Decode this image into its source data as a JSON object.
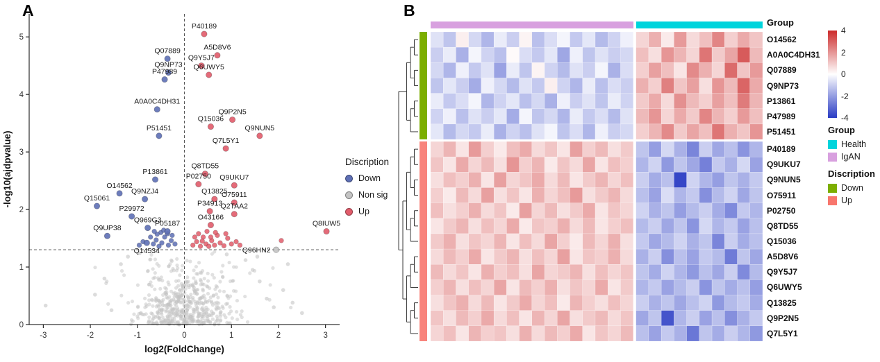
{
  "figure": {
    "panel_a_label": "A",
    "panel_b_label": "B"
  },
  "chart_data": [
    {
      "type": "scatter",
      "name": "volcano-plot",
      "xlabel": "log2(FoldChange)",
      "ylabel": "-log10(ajdpvalue)",
      "xlim": [
        -3.3,
        3.3
      ],
      "ylim": [
        0,
        5.4
      ],
      "xticks": [
        -3,
        -2,
        -1,
        0,
        1,
        2,
        3
      ],
      "yticks": [
        0,
        1,
        2,
        3,
        4,
        5
      ],
      "hline": 1.3,
      "vline": 0,
      "legend_title": "Discription",
      "legend_items": [
        {
          "key": "down",
          "label": "Down"
        },
        {
          "key": "nonsig",
          "label": "Non sig"
        },
        {
          "key": "up",
          "label": "Up"
        }
      ],
      "groups": {
        "down": {
          "label": "Down",
          "color": "#5E6FB5"
        },
        "nonsig": {
          "label": "Non sig",
          "color": "#C4C4C4"
        },
        "up": {
          "label": "Up",
          "color": "#E25C6B"
        }
      },
      "points": [
        {
          "name": "P40189",
          "x": 0.42,
          "y": 5.05,
          "group": "up"
        },
        {
          "name": "A5D8V6",
          "x": 0.7,
          "y": 4.68,
          "group": "up"
        },
        {
          "name": "Q9Y5J7",
          "x": 0.36,
          "y": 4.5,
          "group": "up"
        },
        {
          "name": "Q6UWY5",
          "x": 0.52,
          "y": 4.34,
          "group": "up"
        },
        {
          "name": "Q9P2N5",
          "x": 1.02,
          "y": 3.56,
          "group": "up"
        },
        {
          "name": "Q15036",
          "x": 0.56,
          "y": 3.44,
          "group": "up"
        },
        {
          "name": "Q9NUN5",
          "x": 1.6,
          "y": 3.28,
          "group": "up"
        },
        {
          "name": "Q7L5Y1",
          "x": 0.88,
          "y": 3.06,
          "group": "up"
        },
        {
          "name": "Q8TD55",
          "x": 0.44,
          "y": 2.62,
          "group": "up"
        },
        {
          "name": "P02750",
          "x": 0.3,
          "y": 2.44,
          "group": "up"
        },
        {
          "name": "Q9UKU7",
          "x": 1.06,
          "y": 2.42,
          "group": "up"
        },
        {
          "name": "Q13825",
          "x": 0.64,
          "y": 2.18,
          "group": "up"
        },
        {
          "name": "O75911",
          "x": 1.06,
          "y": 2.12,
          "group": "up"
        },
        {
          "name": "P34913",
          "x": 0.54,
          "y": 1.97,
          "group": "up"
        },
        {
          "name": "Q2TAA2",
          "x": 1.06,
          "y": 1.92,
          "group": "up"
        },
        {
          "name": "O43166",
          "x": 0.56,
          "y": 1.73,
          "group": "up"
        },
        {
          "name": "Q8IUW5",
          "x": 3.02,
          "y": 1.62,
          "group": "up"
        },
        {
          "name": "Q07889",
          "x": -0.36,
          "y": 4.62,
          "group": "down"
        },
        {
          "name": "Q9NP73",
          "x": -0.34,
          "y": 4.38,
          "group": "down"
        },
        {
          "name": "P47989",
          "x": -0.42,
          "y": 4.26,
          "group": "down"
        },
        {
          "name": "A0A0C4DH31",
          "x": -0.58,
          "y": 3.74,
          "group": "down"
        },
        {
          "name": "P51451",
          "x": -0.54,
          "y": 3.28,
          "group": "down"
        },
        {
          "name": "P13861",
          "x": -0.62,
          "y": 2.52,
          "group": "down"
        },
        {
          "name": "O14562",
          "x": -1.38,
          "y": 2.28,
          "group": "down"
        },
        {
          "name": "Q9NZJ4",
          "x": -0.84,
          "y": 2.18,
          "group": "down"
        },
        {
          "name": "Q15061",
          "x": -1.86,
          "y": 2.06,
          "group": "down"
        },
        {
          "name": "P29972",
          "x": -1.12,
          "y": 1.88,
          "group": "down"
        },
        {
          "name": "Q969G3",
          "x": -0.78,
          "y": 1.68,
          "group": "down"
        },
        {
          "name": "P05187",
          "x": -0.36,
          "y": 1.62,
          "group": "down"
        },
        {
          "name": "Q9UP38",
          "x": -1.64,
          "y": 1.54,
          "group": "down"
        },
        {
          "name": "Q14534",
          "x": -0.8,
          "y": 1.42,
          "group": "down",
          "label_pos": "below"
        },
        {
          "name": "Q96HN2",
          "x": 1.95,
          "y": 1.3,
          "group": "nonsig",
          "label_pos": "left"
        }
      ],
      "extra_points": {
        "up": [
          [
            0.18,
            1.38
          ],
          [
            0.26,
            1.44
          ],
          [
            0.34,
            1.36
          ],
          [
            0.4,
            1.52
          ],
          [
            0.46,
            1.4
          ],
          [
            0.52,
            1.36
          ],
          [
            0.58,
            1.46
          ],
          [
            0.64,
            1.38
          ],
          [
            0.7,
            1.55
          ],
          [
            0.76,
            1.42
          ],
          [
            0.84,
            1.37
          ],
          [
            0.92,
            1.5
          ],
          [
            1.0,
            1.4
          ],
          [
            1.1,
            1.44
          ],
          [
            0.3,
            1.58
          ],
          [
            0.48,
            1.62
          ],
          [
            0.66,
            1.6
          ],
          [
            0.88,
            1.58
          ],
          [
            2.06,
            1.46
          ],
          [
            0.22,
            1.52
          ],
          [
            0.38,
            1.45
          ],
          [
            0.56,
            1.52
          ],
          [
            1.18,
            1.38
          ]
        ],
        "down": [
          [
            -0.2,
            1.4
          ],
          [
            -0.28,
            1.46
          ],
          [
            -0.34,
            1.38
          ],
          [
            -0.42,
            1.52
          ],
          [
            -0.48,
            1.42
          ],
          [
            -0.54,
            1.36
          ],
          [
            -0.6,
            1.47
          ],
          [
            -0.66,
            1.4
          ],
          [
            -0.72,
            1.52
          ],
          [
            -0.5,
            1.6
          ],
          [
            -0.36,
            1.58
          ],
          [
            -0.26,
            1.55
          ],
          [
            -0.58,
            1.57
          ],
          [
            -0.44,
            1.64
          ],
          [
            -0.88,
            1.44
          ],
          [
            -0.96,
            1.38
          ],
          [
            -0.64,
            1.62
          ]
        ]
      },
      "nonsig_outliers": [
        [
          -2.95,
          0.33
        ],
        [
          -1.9,
          0.52
        ],
        [
          -1.55,
          0.25
        ],
        [
          1.6,
          0.75
        ],
        [
          1.75,
          0.45
        ],
        [
          1.9,
          0.3
        ],
        [
          2.1,
          0.6
        ],
        [
          2.3,
          0.38
        ],
        [
          1.45,
          0.95
        ],
        [
          -1.35,
          1.05
        ],
        [
          1.3,
          1.12
        ],
        [
          -1.2,
          1.18
        ],
        [
          2.5,
          0.2
        ],
        [
          -1.7,
          0.8
        ],
        [
          1.55,
          1.18
        ],
        [
          0.9,
          1.22
        ],
        [
          -0.95,
          1.24
        ],
        [
          2.2,
          1.05
        ]
      ],
      "background_cloud": {
        "count": 540,
        "seed": 11,
        "x_sd": 0.48,
        "y_sd": 0.5,
        "y_max": 1.27,
        "wide_count": 28,
        "wide_x": 2.4,
        "wide_y": 1.05
      }
    },
    {
      "type": "heatmap",
      "name": "protein-heatmap",
      "rows": [
        "O14562",
        "A0A0C4DH31",
        "Q07889",
        "Q9NP73",
        "P13861",
        "P47989",
        "P51451",
        "P40189",
        "Q9UKU7",
        "Q9NUN5",
        "O75911",
        "P02750",
        "Q8TD55",
        "Q15036",
        "A5D8V6",
        "Q9Y5J7",
        "Q6UWY5",
        "Q13825",
        "Q9P2N5",
        "Q7L5Y1"
      ],
      "row_groups": [
        {
          "name": "Down",
          "count": 7,
          "color": "#7CAE00"
        },
        {
          "name": "Up",
          "count": 13,
          "color": "#F8847C"
        }
      ],
      "col_groups": [
        {
          "name": "IgAN",
          "count": 16,
          "color": "#D8A0DF"
        },
        {
          "name": "Health",
          "count": 10,
          "color": "#00D4DC"
        }
      ],
      "annotation_titles": {
        "group": "Group"
      },
      "scale": {
        "min": -4,
        "max": 4,
        "ticks": [
          4,
          2,
          0,
          -2,
          -4
        ],
        "low_color": "#2A3CC4",
        "mid_color": "#FFFFFF",
        "high_color": "#CC2B2B"
      },
      "values": [
        [
          -0.6,
          -1.2,
          0.3,
          -0.8,
          -1.5,
          -0.4,
          -1.0,
          0.2,
          -1.3,
          -0.7,
          -0.2,
          -1.1,
          -0.5,
          -1.4,
          -0.9,
          -0.3,
          0.8,
          1.5,
          0.4,
          1.9,
          0.7,
          1.2,
          2.3,
          0.9,
          1.6,
          1.1
        ],
        [
          -1.0,
          -0.4,
          -1.6,
          -0.2,
          -0.9,
          -1.3,
          0.1,
          -0.7,
          -1.1,
          -0.5,
          -1.8,
          -0.3,
          -1.2,
          -0.6,
          -1.0,
          -0.8,
          1.2,
          0.6,
          2.0,
          1.4,
          0.8,
          2.6,
          1.0,
          1.7,
          3.1,
          1.3
        ],
        [
          -0.8,
          -1.5,
          -0.3,
          -1.1,
          -0.6,
          -1.9,
          -0.4,
          -1.2,
          0.2,
          -0.9,
          -1.4,
          -0.6,
          -1.0,
          -0.2,
          -1.6,
          -0.7,
          0.9,
          1.8,
          1.2,
          0.5,
          2.2,
          1.5,
          0.8,
          2.8,
          1.1,
          1.9
        ],
        [
          -1.2,
          -0.5,
          -1.0,
          -1.7,
          -0.3,
          -0.8,
          -1.4,
          -0.6,
          -1.1,
          0.3,
          -0.9,
          -1.5,
          -0.4,
          -1.3,
          -0.7,
          -1.0,
          1.5,
          0.9,
          2.4,
          1.1,
          1.8,
          0.6,
          2.0,
          1.3,
          2.9,
          1.6
        ],
        [
          -0.4,
          -1.1,
          -0.7,
          -0.2,
          -1.5,
          -0.9,
          -0.5,
          -1.3,
          -0.8,
          -1.6,
          -0.3,
          -1.0,
          -0.6,
          -1.2,
          -0.4,
          -0.9,
          1.0,
          1.6,
          0.7,
          2.1,
          1.3,
          0.9,
          1.8,
          1.2,
          2.5,
          1.4
        ],
        [
          -0.9,
          -0.3,
          -1.3,
          -0.6,
          -1.0,
          -0.5,
          -1.7,
          -0.2,
          -1.2,
          -0.8,
          -1.5,
          -0.4,
          -1.1,
          -0.7,
          -1.4,
          -0.6,
          1.3,
          2.0,
          0.8,
          1.6,
          1.0,
          2.3,
          1.4,
          0.9,
          1.9,
          1.2
        ],
        [
          -0.5,
          -1.4,
          -0.8,
          -1.1,
          -0.4,
          -1.6,
          -0.9,
          -1.3,
          -0.6,
          -0.2,
          -1.2,
          -0.7,
          -1.5,
          -0.3,
          -1.0,
          -0.8,
          0.9,
          1.4,
          2.2,
          1.0,
          1.7,
          1.2,
          2.6,
          1.5,
          1.1,
          2.0
        ],
        [
          0.8,
          1.4,
          0.5,
          1.9,
          0.9,
          0.4,
          1.2,
          1.6,
          0.7,
          1.1,
          0.5,
          1.8,
          0.9,
          1.3,
          0.6,
          1.0,
          -1.2,
          -2.0,
          -0.8,
          -1.6,
          -2.5,
          -1.0,
          -1.8,
          -1.3,
          -2.2,
          -1.5
        ],
        [
          1.1,
          0.5,
          1.6,
          0.8,
          1.3,
          0.6,
          2.0,
          0.9,
          1.4,
          0.4,
          1.1,
          0.7,
          1.7,
          0.5,
          1.2,
          0.9,
          -1.5,
          -0.9,
          -2.1,
          -1.2,
          -1.8,
          -2.6,
          -1.1,
          -1.6,
          -0.8,
          -1.9
        ],
        [
          0.6,
          1.2,
          0.9,
          1.5,
          0.5,
          1.8,
          0.8,
          1.1,
          1.6,
          0.7,
          1.3,
          0.5,
          1.0,
          1.4,
          0.8,
          1.2,
          -1.0,
          -1.7,
          -1.3,
          -3.8,
          -0.9,
          -1.5,
          -2.0,
          -1.2,
          -1.6,
          -1.1
        ],
        [
          0.9,
          0.4,
          1.3,
          0.7,
          1.8,
          0.6,
          1.1,
          0.5,
          1.5,
          0.8,
          1.2,
          1.9,
          0.6,
          1.0,
          1.4,
          0.7,
          -1.3,
          -1.9,
          -0.7,
          -1.5,
          -1.1,
          -2.3,
          -1.4,
          -0.9,
          -1.8,
          -1.2
        ],
        [
          1.2,
          0.6,
          0.9,
          1.5,
          0.7,
          1.1,
          0.4,
          1.8,
          0.8,
          1.3,
          0.6,
          1.0,
          1.6,
          0.5,
          1.1,
          0.8,
          -0.9,
          -1.6,
          -1.2,
          -2.0,
          -1.4,
          -1.0,
          -1.7,
          -2.4,
          -1.1,
          -1.5
        ],
        [
          0.5,
          1.0,
          1.4,
          0.6,
          1.2,
          0.8,
          1.6,
          0.4,
          1.1,
          0.9,
          1.5,
          0.7,
          1.3,
          0.5,
          0.9,
          1.2,
          -1.4,
          -1.0,
          -1.8,
          -1.2,
          -2.2,
          -0.8,
          -1.5,
          -1.1,
          -1.9,
          -1.3
        ],
        [
          1.0,
          1.5,
          0.6,
          1.1,
          0.8,
          1.4,
          0.5,
          1.2,
          0.7,
          1.7,
          0.9,
          0.4,
          1.3,
          0.8,
          1.5,
          0.6,
          -1.1,
          -1.8,
          -1.4,
          -0.9,
          -1.6,
          -1.2,
          -2.5,
          -1.0,
          -1.7,
          -1.3
        ],
        [
          0.7,
          1.3,
          0.9,
          1.6,
          0.5,
          1.0,
          1.4,
          0.6,
          1.2,
          0.8,
          1.8,
          0.5,
          1.1,
          0.9,
          1.5,
          0.7,
          -1.6,
          -1.0,
          -2.3,
          -1.3,
          -1.9,
          -1.1,
          -1.4,
          -2.7,
          -1.2,
          -1.8
        ],
        [
          1.3,
          0.7,
          1.1,
          0.5,
          1.5,
          0.9,
          1.2,
          0.6,
          1.7,
          0.8,
          1.0,
          1.4,
          0.6,
          1.2,
          0.8,
          1.1,
          -1.2,
          -1.7,
          -0.9,
          -1.5,
          -2.1,
          -1.3,
          -1.8,
          -1.0,
          -2.4,
          -1.4
        ],
        [
          0.9,
          1.4,
          0.6,
          1.2,
          0.8,
          1.7,
          0.5,
          1.3,
          0.9,
          1.5,
          0.6,
          1.1,
          0.8,
          1.6,
          0.5,
          1.0,
          -1.5,
          -1.1,
          -1.9,
          -1.4,
          -1.0,
          -2.2,
          -1.2,
          -1.7,
          -1.3,
          -2.0
        ],
        [
          0.6,
          1.1,
          1.5,
          0.7,
          1.3,
          0.5,
          1.0,
          1.6,
          0.8,
          1.2,
          0.4,
          1.4,
          0.9,
          0.6,
          1.2,
          0.8,
          -1.0,
          -1.6,
          -1.2,
          -1.8,
          -1.3,
          -0.9,
          -2.1,
          -1.4,
          -1.1,
          -1.7
        ],
        [
          1.1,
          0.6,
          1.3,
          0.9,
          1.6,
          0.7,
          1.2,
          0.5,
          1.4,
          0.8,
          1.7,
          0.6,
          1.0,
          1.3,
          0.7,
          1.1,
          -1.8,
          -1.2,
          -3.5,
          -1.5,
          -1.0,
          -1.9,
          -1.3,
          -2.3,
          -1.6,
          -1.1
        ],
        [
          0.8,
          1.2,
          0.5,
          1.4,
          0.9,
          1.1,
          0.6,
          1.5,
          0.7,
          1.3,
          0.9,
          1.6,
          0.5,
          1.1,
          0.8,
          1.3,
          -1.3,
          -1.9,
          -1.1,
          -1.6,
          -2.8,
          -1.2,
          -1.7,
          -1.0,
          -1.5,
          -2.1
        ]
      ],
      "legend": {
        "group": {
          "title": "Group",
          "items": [
            {
              "label": "Health",
              "color": "#00D4DC"
            },
            {
              "label": "IgAN",
              "color": "#D8A0DF"
            }
          ]
        },
        "discription": {
          "title": "Discription",
          "items": [
            {
              "label": "Down",
              "color": "#7CAE00"
            },
            {
              "label": "Up",
              "color": "#F8766D"
            }
          ]
        }
      }
    }
  ]
}
